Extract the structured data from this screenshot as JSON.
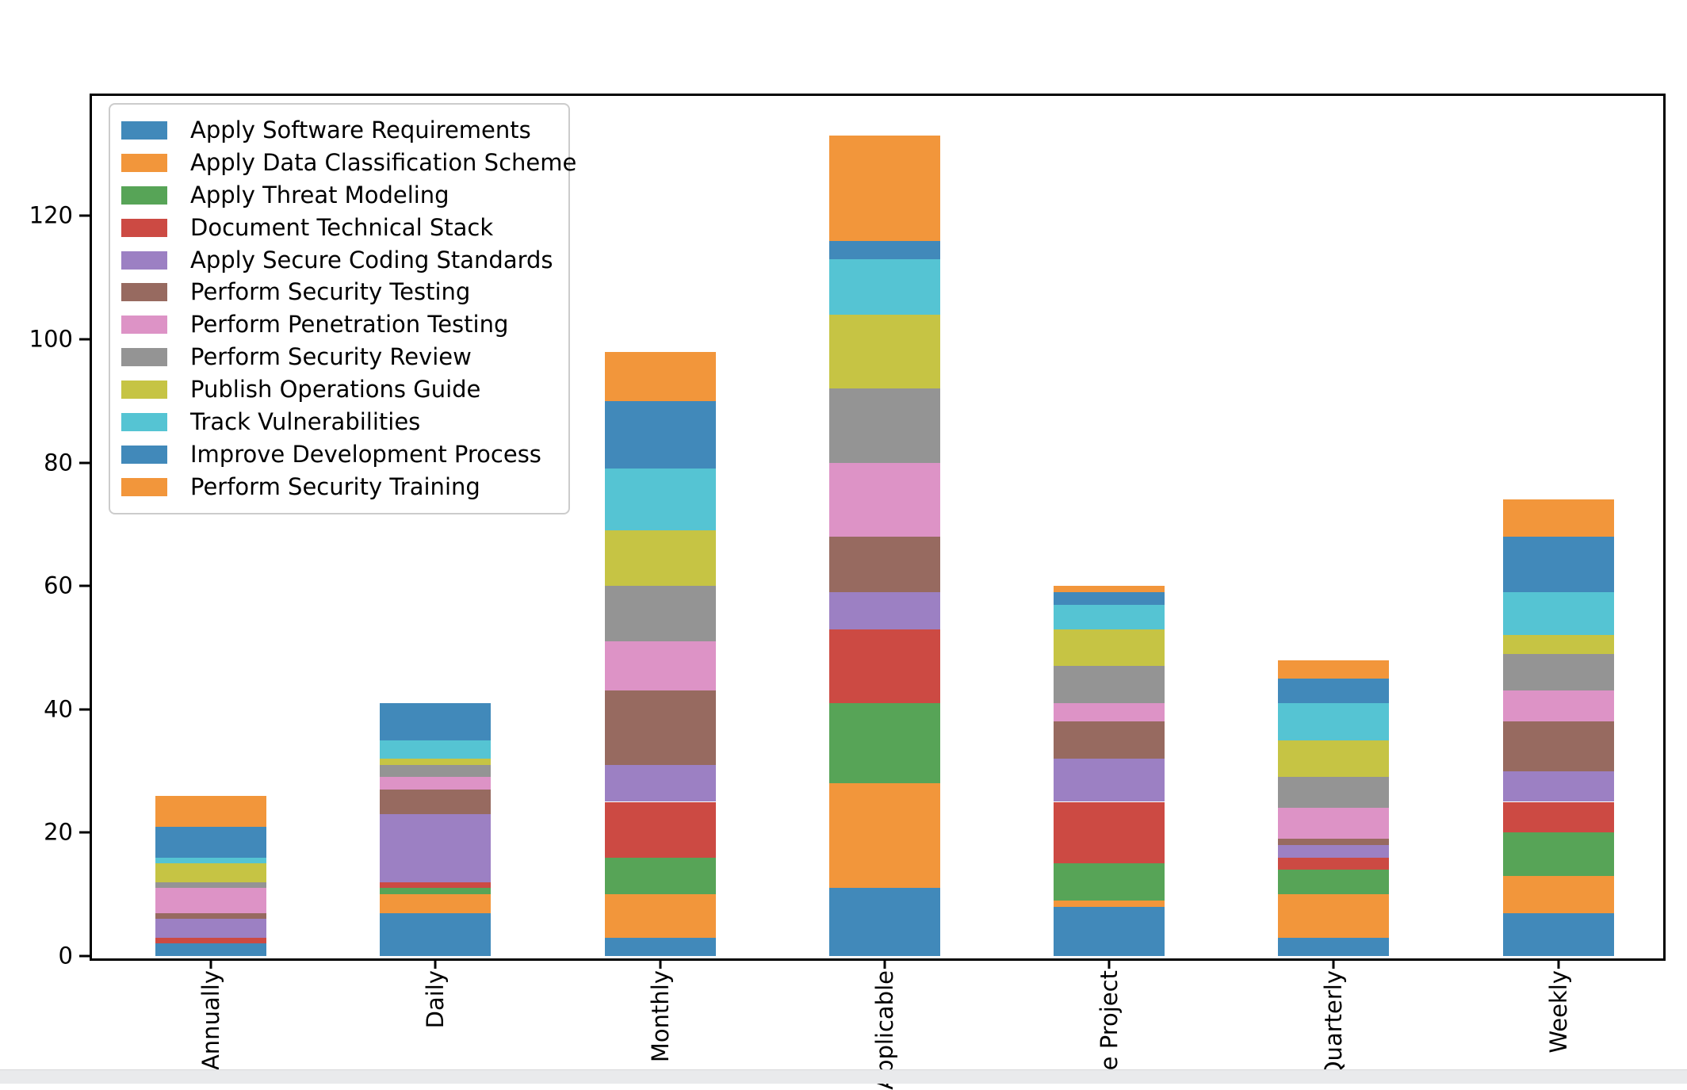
{
  "chart_data": {
    "type": "bar",
    "stacked": true,
    "title": "",
    "xlabel": "",
    "ylabel": "",
    "grid": false,
    "legend_position": "upper left",
    "categories": [
      "Annually",
      "Daily",
      "Monthly",
      "Applicable",
      "he Project",
      "Quarterly",
      "Weekly"
    ],
    "series": [
      {
        "name": "Apply Software Requirements",
        "color": "#4189ba",
        "values": [
          2,
          7,
          3,
          11,
          8,
          3,
          7
        ]
      },
      {
        "name": "Apply Data Classification Scheme",
        "color": "#f2963b",
        "values": [
          0,
          3,
          7,
          17,
          1,
          7,
          6
        ]
      },
      {
        "name": "Apply Threat Modeling",
        "color": "#57a457",
        "values": [
          0,
          1,
          6,
          13,
          6,
          4,
          7
        ]
      },
      {
        "name": "Document Technical Stack",
        "color": "#cc4a43",
        "values": [
          1,
          1,
          9,
          12,
          10,
          2,
          5
        ]
      },
      {
        "name": "Apply Secure Coding Standards",
        "color": "#9c80c3",
        "values": [
          3,
          11,
          6,
          6,
          7,
          2,
          5
        ]
      },
      {
        "name": "Perform Security Testing",
        "color": "#976a60",
        "values": [
          1,
          4,
          12,
          9,
          6,
          1,
          8
        ]
      },
      {
        "name": "Perform Penetration Testing",
        "color": "#dd93c6",
        "values": [
          4,
          2,
          8,
          12,
          3,
          5,
          5
        ]
      },
      {
        "name": "Perform Security Review",
        "color": "#949494",
        "values": [
          1,
          2,
          9,
          12,
          6,
          5,
          6
        ]
      },
      {
        "name": "Publish Operations Guide",
        "color": "#c6c444",
        "values": [
          3,
          1,
          9,
          12,
          6,
          6,
          3
        ]
      },
      {
        "name": "Track Vulnerabilities",
        "color": "#55c4d3",
        "values": [
          1,
          3,
          10,
          9,
          4,
          6,
          7
        ]
      },
      {
        "name": "Improve Development Process",
        "color": "#4189ba",
        "values": [
          5,
          6,
          11,
          3,
          2,
          4,
          9
        ]
      },
      {
        "name": "Perform Security Training",
        "color": "#f2963b",
        "values": [
          5,
          0,
          8,
          17,
          1,
          3,
          6
        ]
      }
    ],
    "totals": [
      26,
      41,
      98,
      133,
      60,
      48,
      74
    ],
    "y_ticks": [
      0,
      20,
      40,
      60,
      80,
      100,
      120
    ],
    "ylim": [
      0,
      139.8
    ],
    "axis_color": "#000000",
    "legend_border_color": "#cccccc"
  }
}
